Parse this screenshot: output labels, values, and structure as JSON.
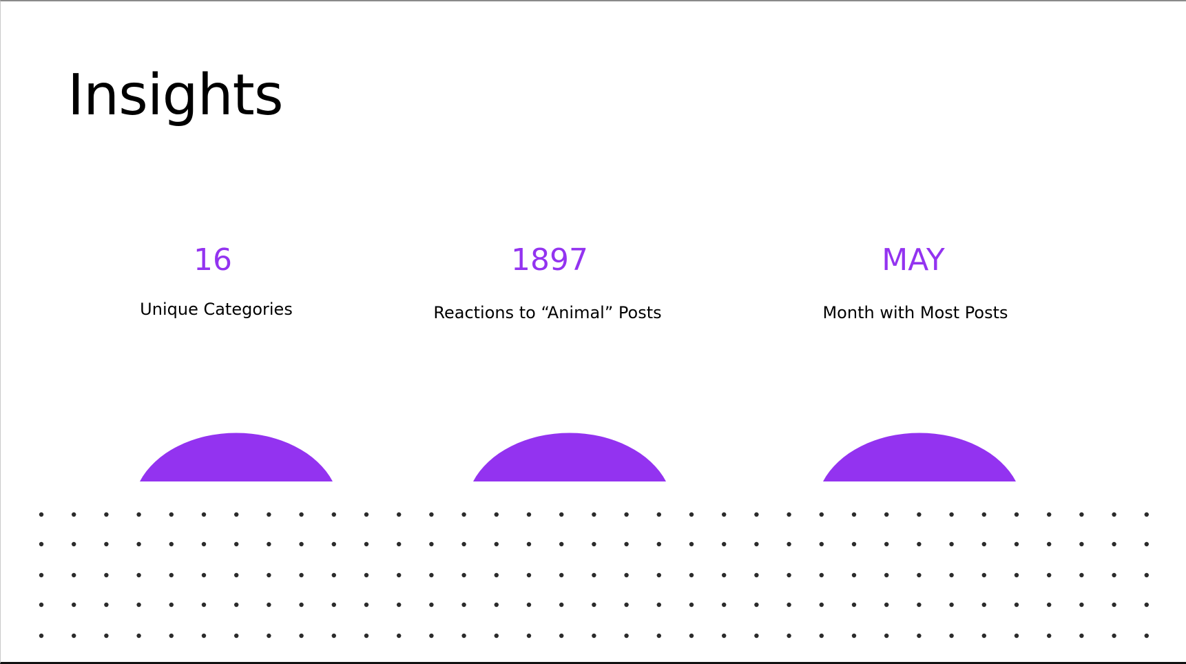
{
  "slide": {
    "title": "Insights"
  },
  "colors": {
    "accent": "#9333f0",
    "dot": "#2b2b2b"
  },
  "stats": [
    {
      "value": "16",
      "label": "Unique Categories"
    },
    {
      "value": "1897",
      "label": "Reactions to “Animal” Posts"
    },
    {
      "value": "MAY",
      "label": "Month with Most Posts"
    }
  ]
}
